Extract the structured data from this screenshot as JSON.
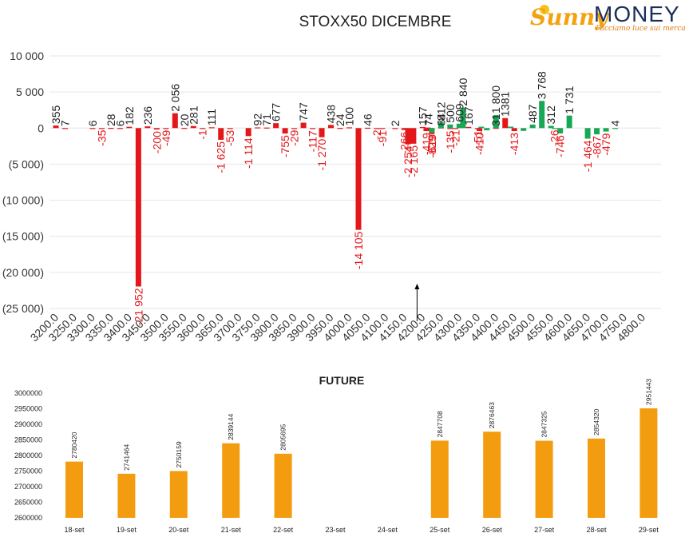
{
  "brand": {
    "name_part1": "Sunny",
    "name_part2": "MONEY",
    "tagline": "Facciamo luce sui mercati",
    "colors": {
      "sun": "#f3a20f",
      "text": "#1b2f5b"
    }
  },
  "chart_data": [
    {
      "type": "bar",
      "title": "STOXX50 DICEMBRE",
      "ylim": [
        -25000,
        10000
      ],
      "y_ticks": [
        10000,
        5000,
        0,
        -5000,
        -10000,
        -15000,
        -20000,
        -25000
      ],
      "y_tick_labels": [
        "10 000",
        "5 000",
        "0",
        "(5 000)",
        "(10 000)",
        "(15 000)",
        "(20 000)",
        "(25 000)"
      ],
      "x_ticks": [
        "3200.0",
        "3250.0",
        "3300.0",
        "3350.0",
        "3400.0",
        "3450.0",
        "3500.0",
        "3550.0",
        "3600.0",
        "3650.0",
        "3700.0",
        "3750.0",
        "3800.0",
        "3850.0",
        "3900.0",
        "3950.0",
        "4000.0",
        "4050.0",
        "4100.0",
        "4150.0",
        "4200.0",
        "4250.0",
        "4300.0",
        "4350.0",
        "4400.0",
        "4450.0",
        "4500.0",
        "4550.0",
        "4600.0",
        "4650.0",
        "4700.0",
        "4750.0",
        "4800.0"
      ],
      "xlim": [
        3200,
        4800
      ],
      "colors": {
        "call": "#18a855",
        "put": "#e3171a",
        "put_label": "#e3171a"
      },
      "grid": true,
      "current_level_arrow": 4200,
      "series": [
        {
          "kind": "put",
          "points": [
            {
              "x": 3200,
              "y": 355,
              "label": "355"
            },
            {
              "x": 3225,
              "y": 7,
              "label": "7"
            },
            {
              "x": 3300,
              "y": 6,
              "label": "6"
            },
            {
              "x": 3325,
              "y": -35,
              "label": "-35"
            },
            {
              "x": 3350,
              "y": 28,
              "label": "28"
            },
            {
              "x": 3375,
              "y": 6,
              "label": "6"
            },
            {
              "x": 3400,
              "y": 182,
              "label": "182"
            },
            {
              "x": 3425,
              "y": -21952,
              "label": "-21 952"
            },
            {
              "x": 3450,
              "y": 236,
              "label": "236"
            },
            {
              "x": 3475,
              "y": -200,
              "label": "-200"
            },
            {
              "x": 3500,
              "y": -49,
              "label": "-49"
            },
            {
              "x": 3525,
              "y": 2056,
              "label": "2 056"
            },
            {
              "x": 3550,
              "y": 20,
              "label": "20"
            },
            {
              "x": 3575,
              "y": 281,
              "label": "281"
            },
            {
              "x": 3600,
              "y": -1,
              "label": "-1"
            },
            {
              "x": 3625,
              "y": 111,
              "label": "111"
            },
            {
              "x": 3650,
              "y": -1625,
              "label": "-1 625"
            },
            {
              "x": 3675,
              "y": -53,
              "label": "-53"
            },
            {
              "x": 3725,
              "y": -1114,
              "label": "-1 114"
            },
            {
              "x": 3750,
              "y": 92,
              "label": "92"
            },
            {
              "x": 3775,
              "y": 71,
              "label": "71"
            },
            {
              "x": 3800,
              "y": 677,
              "label": "677"
            },
            {
              "x": 3825,
              "y": -755,
              "label": "-755"
            },
            {
              "x": 3850,
              "y": -29,
              "label": "-29"
            },
            {
              "x": 3875,
              "y": 747,
              "label": "747"
            },
            {
              "x": 3900,
              "y": -117,
              "label": "-117"
            },
            {
              "x": 3925,
              "y": -1270,
              "label": "-1 270"
            },
            {
              "x": 3950,
              "y": 438,
              "label": "438"
            },
            {
              "x": 3975,
              "y": 24,
              "label": "24"
            },
            {
              "x": 4000,
              "y": 100,
              "label": "100"
            },
            {
              "x": 4025,
              "y": -14105,
              "label": "-14 105"
            },
            {
              "x": 4050,
              "y": 46,
              "label": "46"
            },
            {
              "x": 4075,
              "y": -2,
              "label": "-2"
            },
            {
              "x": 4090,
              "y": -91,
              "label": "-91"
            },
            {
              "x": 4125,
              "y": 2,
              "label": "2"
            },
            {
              "x": 4150,
              "y": -266,
              "label": "-266"
            },
            {
              "x": 4160,
              "y": -2254,
              "label": "-2 254"
            },
            {
              "x": 4175,
              "y": -2165,
              "label": "-2 165"
            },
            {
              "x": 4200,
              "y": 157,
              "label": "157"
            },
            {
              "x": 4210,
              "y": -419,
              "label": "-419"
            },
            {
              "x": 4215,
              "y": 74,
              "label": "74"
            },
            {
              "x": 4225,
              "y": -829,
              "label": "-829"
            },
            {
              "x": 4250,
              "y": 84,
              "label": "84"
            },
            {
              "x": 4275,
              "y": -135,
              "label": "-135"
            },
            {
              "x": 4290,
              "y": -21,
              "label": "-21"
            },
            {
              "x": 4325,
              "y": 167,
              "label": "167"
            },
            {
              "x": 4350,
              "y": -51,
              "label": "-51"
            },
            {
              "x": 4355,
              "y": -410,
              "label": "-410"
            },
            {
              "x": 4400,
              "y": 31,
              "label": "31"
            },
            {
              "x": 4425,
              "y": 1381,
              "label": "1381"
            },
            {
              "x": 4450,
              "y": -413,
              "label": "-413"
            }
          ]
        },
        {
          "kind": "call",
          "points": [
            {
              "x": 4225,
              "y": -619,
              "label": "-619"
            },
            {
              "x": 4250,
              "y": 812,
              "label": "812"
            },
            {
              "x": 4275,
              "y": 500,
              "label": "500"
            },
            {
              "x": 4310,
              "y": 2840,
              "label": "2 840"
            },
            {
              "x": 4300,
              "y": 609,
              "label": "609"
            },
            {
              "x": 4360,
              "y": 190,
              "label": ""
            },
            {
              "x": 4375,
              "y": -310,
              "label": ""
            },
            {
              "x": 4400,
              "y": 1800,
              "label": "1 800"
            },
            {
              "x": 4440,
              "y": 200,
              "label": ""
            },
            {
              "x": 4475,
              "y": -390,
              "label": ""
            },
            {
              "x": 4500,
              "y": 487,
              "label": "487"
            },
            {
              "x": 4525,
              "y": 3768,
              "label": "3 768"
            },
            {
              "x": 4550,
              "y": 312,
              "label": "312"
            },
            {
              "x": 4560,
              "y": -26,
              "label": "-26"
            },
            {
              "x": 4575,
              "y": -746,
              "label": "-746"
            },
            {
              "x": 4600,
              "y": 1731,
              "label": "1 731"
            },
            {
              "x": 4650,
              "y": -1464,
              "label": "-1 464"
            },
            {
              "x": 4675,
              "y": -867,
              "label": "-867"
            },
            {
              "x": 4700,
              "y": -479,
              "label": "-479"
            },
            {
              "x": 4725,
              "y": 4,
              "label": "4"
            }
          ]
        }
      ]
    },
    {
      "type": "bar",
      "title": "FUTURE",
      "ylim": [
        2600000,
        3000000
      ],
      "y_ticks": [
        2600000,
        2650000,
        2700000,
        2750000,
        2800000,
        2850000,
        2900000,
        2950000,
        3000000
      ],
      "y_tick_labels": [
        "2600000",
        "2650000",
        "2700000",
        "2750000",
        "2800000",
        "2850000",
        "2900000",
        "2950000",
        "3000000"
      ],
      "categories": [
        "18-set",
        "19-set",
        "20-set",
        "21-set",
        "22-set",
        "23-set",
        "24-set",
        "25-set",
        "26-set",
        "27-set",
        "28-set",
        "29-set"
      ],
      "values": [
        2780420,
        2741464,
        2750159,
        2839144,
        2805695,
        null,
        null,
        2847708,
        2876463,
        2847325,
        2854320,
        2951443
      ],
      "value_labels": [
        "2780420",
        "2741464",
        "2750159",
        "2839144",
        "2805695",
        "",
        "",
        "2847708",
        "2876463",
        "2847325",
        "2854320",
        "2951443"
      ],
      "colors": {
        "bar": "#f39c0f"
      },
      "grid": false
    }
  ]
}
